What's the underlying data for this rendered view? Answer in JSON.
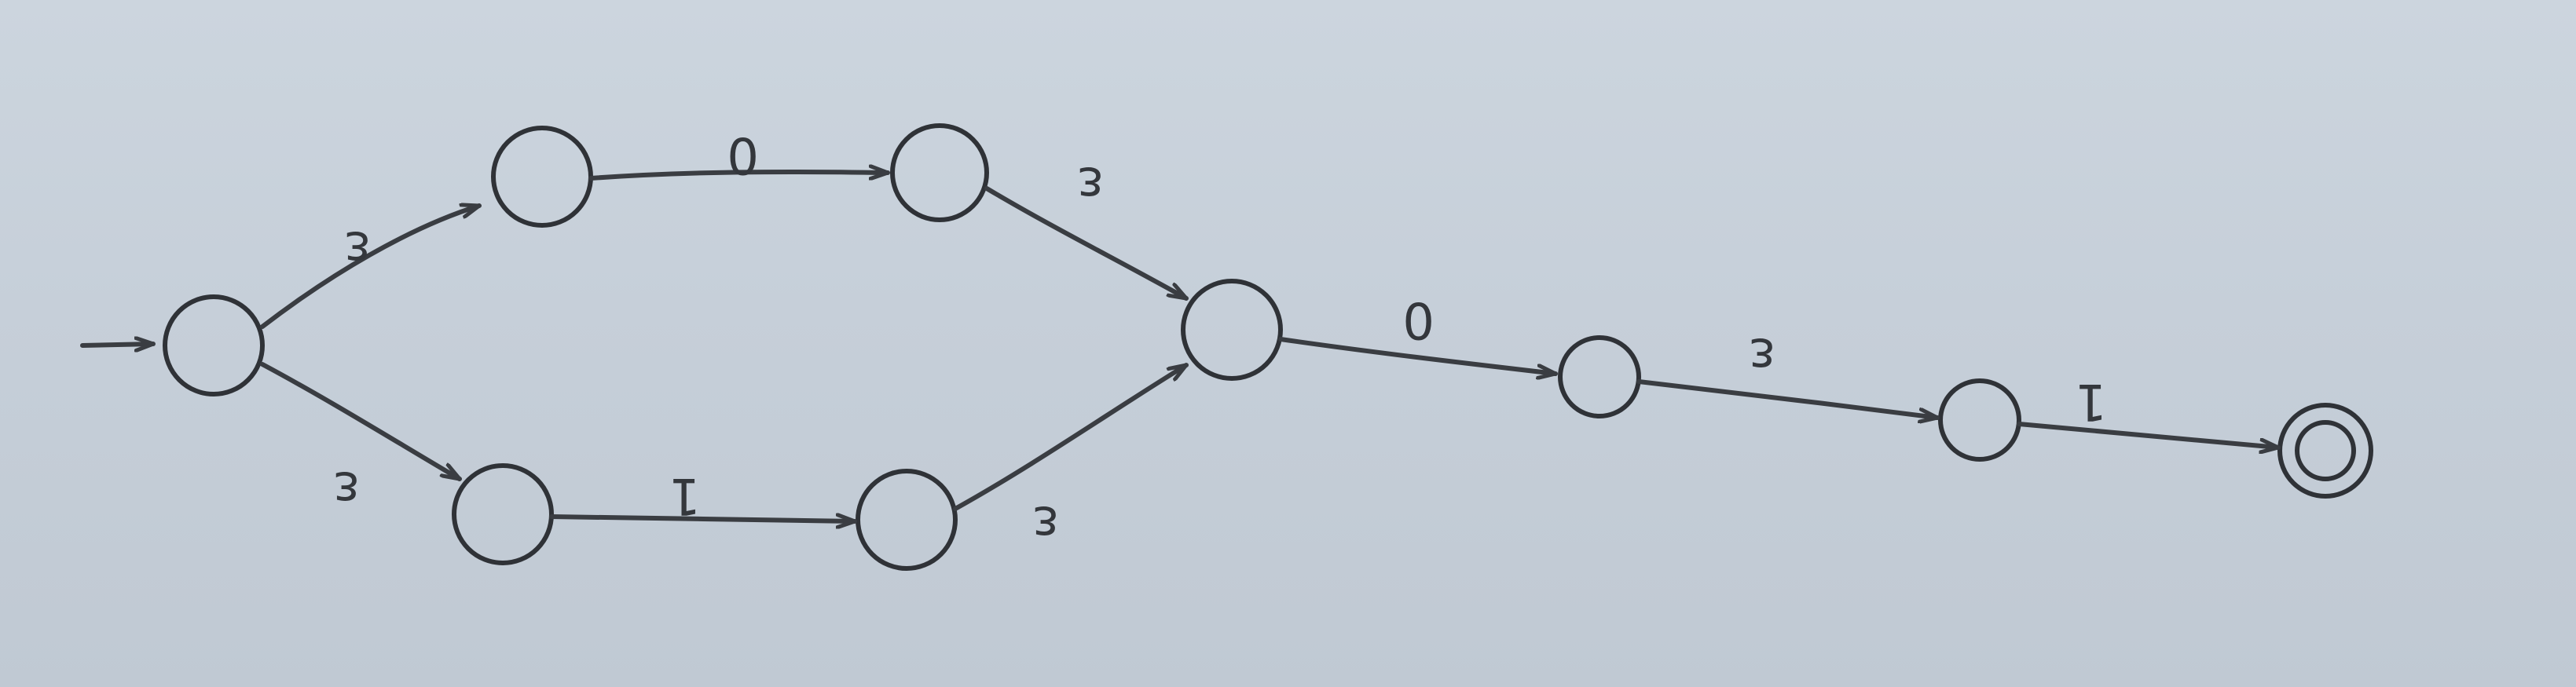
{
  "diagram": {
    "start_symbol": "→",
    "labels": {
      "q0_q1": "ε",
      "q0_q2": "ε",
      "q1_q3": "0",
      "q2_q4": "1",
      "q3_q5": "ε",
      "q4_q5": "ε",
      "q5_q6": "0",
      "q6_q7": "ε",
      "q7_q8": "1"
    }
  }
}
